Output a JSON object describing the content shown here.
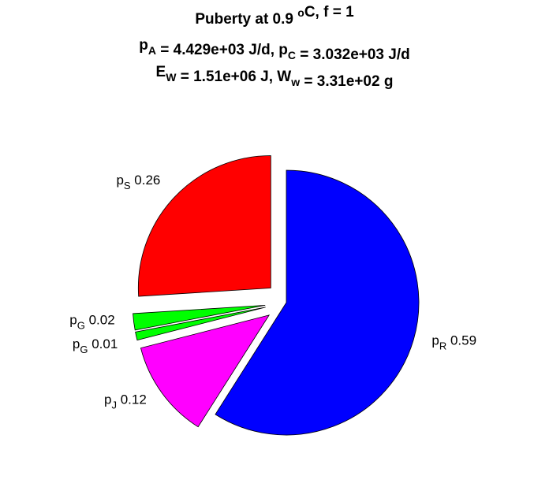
{
  "chart_data": {
    "type": "pie",
    "title_lines": [
      [
        {
          "t": "Puberty at 0.9 "
        },
        {
          "t": "o",
          "sup": true
        },
        {
          "t": "C, f = 1"
        }
      ],
      [
        {
          "t": "p"
        },
        {
          "t": "A",
          "sub": true
        },
        {
          "t": " = 4.429e+03 J/d,  p"
        },
        {
          "t": "C",
          "sub": true
        },
        {
          "t": " = 3.032e+03 J/d"
        }
      ],
      [
        {
          "t": "E"
        },
        {
          "t": "W",
          "sub": true
        },
        {
          "t": " = 1.51e+06 J, W"
        },
        {
          "t": "w",
          "sub": true
        },
        {
          "t": " = 3.31e+02 g"
        }
      ]
    ],
    "slices": [
      {
        "symbol": "p",
        "subscript": "R",
        "value_label": "0.59",
        "value": 0.59,
        "color": "#0000ff",
        "exploded": false
      },
      {
        "symbol": "p",
        "subscript": "J",
        "value_label": "0.12",
        "value": 0.12,
        "color": "#ff00ff",
        "exploded": true
      },
      {
        "symbol": "p",
        "subscript": "G",
        "value_label": "0.01",
        "value": 0.01,
        "color": "#00ff00",
        "exploded": true
      },
      {
        "symbol": "p",
        "subscript": "G",
        "value_label": "0.02",
        "value": 0.02,
        "color": "#00ff00",
        "exploded": true
      },
      {
        "symbol": "p",
        "subscript": "S",
        "value_label": "0.26",
        "value": 0.26,
        "color": "#ff0000",
        "exploded": true
      }
    ]
  }
}
